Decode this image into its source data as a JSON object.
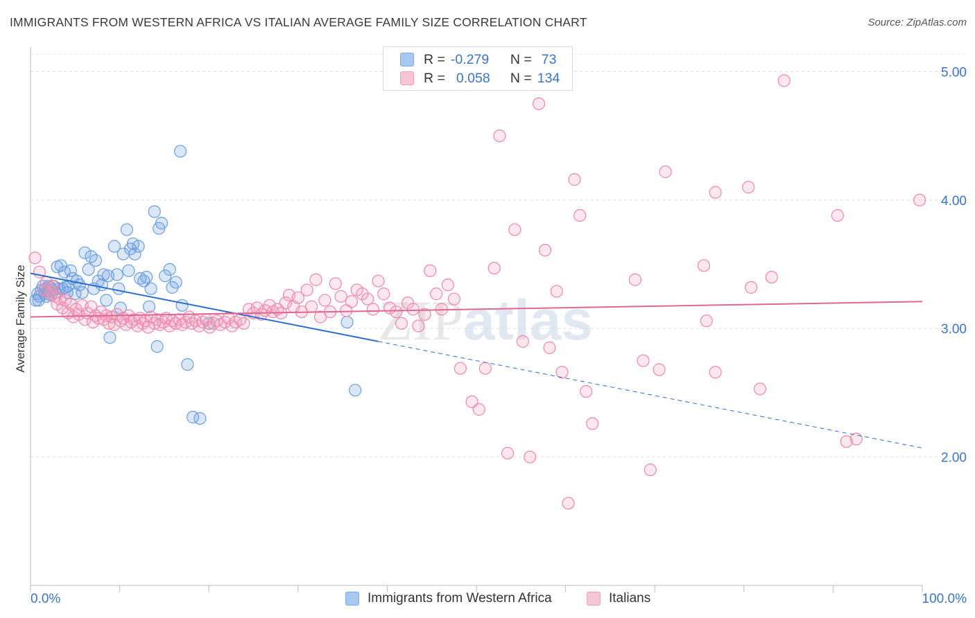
{
  "title": "IMMIGRANTS FROM WESTERN AFRICA VS ITALIAN AVERAGE FAMILY SIZE CORRELATION CHART",
  "source": "Source: ZipAtlas.com",
  "watermark": "ZIPatlas",
  "legend_top": [
    {
      "r_label": "R =",
      "r_value": "-0.279",
      "n_label": "N =",
      "n_value": "73",
      "color": "#a9c8f0"
    },
    {
      "r_label": "R =",
      "r_value": "0.058",
      "n_label": "N =",
      "n_value": "134",
      "color": "#f7b8cc"
    }
  ],
  "legend_bottom": [
    {
      "label": "Immigrants from Western Africa",
      "color": "#a9c8f0"
    },
    {
      "label": "Italians",
      "color": "#f7b8cc"
    }
  ],
  "chart_data": {
    "type": "scatter",
    "xlabel": "",
    "ylabel": "Average Family Size",
    "xlim": [
      0,
      100
    ],
    "ylim": [
      1.0,
      5.18
    ],
    "x_tick_labels": [
      "0.0%",
      "100.0%"
    ],
    "y_ticks": [
      2.0,
      3.0,
      4.0,
      5.0
    ],
    "y_tick_labels": [
      "2.00",
      "3.00",
      "4.00",
      "5.00"
    ],
    "grid": true,
    "legend_position": "top-center",
    "series": [
      {
        "name": "Immigrants from Western Africa",
        "color": "#6a9fe0",
        "fill": "rgba(110,160,225,0.25)",
        "trend_color": "#2a6dcc",
        "trend": {
          "x0": 0,
          "y0": 3.43,
          "x_solid_end": 39,
          "x1": 100,
          "y1": 2.07
        },
        "points": [
          [
            0.6,
            3.22
          ],
          [
            0.8,
            3.27
          ],
          [
            0.9,
            3.22
          ],
          [
            1.0,
            3.25
          ],
          [
            1.2,
            3.3
          ],
          [
            1.4,
            3.33
          ],
          [
            1.6,
            3.27
          ],
          [
            1.7,
            3.31
          ],
          [
            1.8,
            3.25
          ],
          [
            2.0,
            3.33
          ],
          [
            2.1,
            3.29
          ],
          [
            2.2,
            3.32
          ],
          [
            2.3,
            3.26
          ],
          [
            2.4,
            3.3
          ],
          [
            2.6,
            3.33
          ],
          [
            2.8,
            3.28
          ],
          [
            3.0,
            3.48
          ],
          [
            3.2,
            3.31
          ],
          [
            3.4,
            3.49
          ],
          [
            3.6,
            3.31
          ],
          [
            3.8,
            3.44
          ],
          [
            3.9,
            3.32
          ],
          [
            4.1,
            3.28
          ],
          [
            4.2,
            3.33
          ],
          [
            4.5,
            3.45
          ],
          [
            4.7,
            3.39
          ],
          [
            5.0,
            3.27
          ],
          [
            5.2,
            3.37
          ],
          [
            5.5,
            3.34
          ],
          [
            5.8,
            3.28
          ],
          [
            6.1,
            3.59
          ],
          [
            6.5,
            3.46
          ],
          [
            6.8,
            3.56
          ],
          [
            7.1,
            3.31
          ],
          [
            7.3,
            3.53
          ],
          [
            7.6,
            3.37
          ],
          [
            8.0,
            3.34
          ],
          [
            8.2,
            3.42
          ],
          [
            8.5,
            3.22
          ],
          [
            8.7,
            3.41
          ],
          [
            8.9,
            2.93
          ],
          [
            9.1,
            3.09
          ],
          [
            9.4,
            3.64
          ],
          [
            9.7,
            3.42
          ],
          [
            9.9,
            3.31
          ],
          [
            10.1,
            3.16
          ],
          [
            10.4,
            3.58
          ],
          [
            10.8,
            3.77
          ],
          [
            11.0,
            3.45
          ],
          [
            11.2,
            3.62
          ],
          [
            11.5,
            3.66
          ],
          [
            11.7,
            3.58
          ],
          [
            12.1,
            3.64
          ],
          [
            12.3,
            3.39
          ],
          [
            12.7,
            3.37
          ],
          [
            13.0,
            3.4
          ],
          [
            13.3,
            3.17
          ],
          [
            13.5,
            3.31
          ],
          [
            13.9,
            3.91
          ],
          [
            14.2,
            2.86
          ],
          [
            14.4,
            3.78
          ],
          [
            14.7,
            3.82
          ],
          [
            15.1,
            3.41
          ],
          [
            15.6,
            3.46
          ],
          [
            15.9,
            3.32
          ],
          [
            16.3,
            3.36
          ],
          [
            16.8,
            4.38
          ],
          [
            17.0,
            3.18
          ],
          [
            17.6,
            2.72
          ],
          [
            18.2,
            2.31
          ],
          [
            19.0,
            2.3
          ],
          [
            20.0,
            3.04
          ],
          [
            35.5,
            3.05
          ],
          [
            36.4,
            2.52
          ]
        ]
      },
      {
        "name": "Italians",
        "color": "#ee88aa",
        "fill": "rgba(245,160,190,0.25)",
        "trend_color": "#e06690",
        "trend": {
          "x0": 0,
          "y0": 3.09,
          "x1": 100,
          "y1": 3.21
        },
        "points": [
          [
            0.5,
            3.55
          ],
          [
            1.0,
            3.44
          ],
          [
            1.5,
            3.3
          ],
          [
            1.8,
            3.36
          ],
          [
            2.1,
            3.27
          ],
          [
            2.3,
            3.29
          ],
          [
            2.5,
            3.33
          ],
          [
            2.8,
            3.25
          ],
          [
            3.0,
            3.19
          ],
          [
            3.3,
            3.23
          ],
          [
            3.6,
            3.16
          ],
          [
            3.9,
            3.22
          ],
          [
            4.2,
            3.12
          ],
          [
            4.5,
            3.19
          ],
          [
            4.8,
            3.09
          ],
          [
            5.1,
            3.15
          ],
          [
            5.4,
            3.11
          ],
          [
            5.8,
            3.18
          ],
          [
            6.1,
            3.07
          ],
          [
            6.4,
            3.12
          ],
          [
            6.8,
            3.17
          ],
          [
            7.0,
            3.05
          ],
          [
            7.3,
            3.1
          ],
          [
            7.6,
            3.08
          ],
          [
            7.9,
            3.13
          ],
          [
            8.2,
            3.07
          ],
          [
            8.5,
            3.1
          ],
          [
            8.8,
            3.04
          ],
          [
            9.1,
            3.09
          ],
          [
            9.4,
            3.03
          ],
          [
            9.7,
            3.11
          ],
          [
            10.1,
            3.06
          ],
          [
            10.4,
            3.08
          ],
          [
            10.7,
            3.03
          ],
          [
            11.0,
            3.1
          ],
          [
            11.3,
            3.05
          ],
          [
            11.6,
            3.07
          ],
          [
            12.0,
            3.02
          ],
          [
            12.3,
            3.08
          ],
          [
            12.6,
            3.04
          ],
          [
            12.9,
            3.06
          ],
          [
            13.2,
            3.01
          ],
          [
            13.5,
            3.09
          ],
          [
            13.9,
            3.04
          ],
          [
            14.2,
            3.07
          ],
          [
            14.5,
            3.03
          ],
          [
            14.9,
            3.05
          ],
          [
            15.2,
            3.08
          ],
          [
            15.6,
            3.02
          ],
          [
            15.9,
            3.06
          ],
          [
            16.3,
            3.04
          ],
          [
            16.7,
            3.07
          ],
          [
            17.0,
            3.03
          ],
          [
            17.4,
            3.05
          ],
          [
            17.8,
            3.09
          ],
          [
            18.1,
            3.04
          ],
          [
            18.5,
            3.06
          ],
          [
            18.9,
            3.02
          ],
          [
            19.3,
            3.05
          ],
          [
            19.7,
            3.07
          ],
          [
            20.1,
            3.01
          ],
          [
            20.5,
            3.04
          ],
          [
            20.9,
            3.06
          ],
          [
            21.3,
            3.03
          ],
          [
            21.8,
            3.05
          ],
          [
            22.2,
            3.08
          ],
          [
            22.6,
            3.02
          ],
          [
            23.0,
            3.05
          ],
          [
            23.5,
            3.07
          ],
          [
            23.9,
            3.04
          ],
          [
            24.5,
            3.15
          ],
          [
            25.0,
            3.12
          ],
          [
            25.4,
            3.16
          ],
          [
            25.9,
            3.11
          ],
          [
            26.3,
            3.14
          ],
          [
            26.8,
            3.18
          ],
          [
            27.2,
            3.13
          ],
          [
            27.7,
            3.15
          ],
          [
            28.1,
            3.12
          ],
          [
            28.6,
            3.2
          ],
          [
            29.0,
            3.26
          ],
          [
            29.5,
            3.17
          ],
          [
            30.0,
            3.24
          ],
          [
            30.4,
            3.13
          ],
          [
            31.0,
            3.3
          ],
          [
            31.5,
            3.17
          ],
          [
            32.0,
            3.38
          ],
          [
            32.5,
            3.09
          ],
          [
            33.0,
            3.22
          ],
          [
            33.6,
            3.13
          ],
          [
            34.2,
            3.35
          ],
          [
            34.8,
            3.25
          ],
          [
            35.4,
            3.14
          ],
          [
            36.0,
            3.21
          ],
          [
            36.6,
            3.3
          ],
          [
            37.2,
            3.27
          ],
          [
            37.8,
            3.23
          ],
          [
            38.4,
            3.15
          ],
          [
            39.0,
            3.37
          ],
          [
            39.6,
            3.27
          ],
          [
            40.3,
            3.16
          ],
          [
            41.0,
            3.13
          ],
          [
            41.6,
            3.04
          ],
          [
            42.3,
            3.2
          ],
          [
            42.9,
            3.15
          ],
          [
            43.5,
            3.02
          ],
          [
            44.2,
            3.11
          ],
          [
            44.8,
            3.45
          ],
          [
            45.5,
            3.27
          ],
          [
            46.1,
            3.15
          ],
          [
            46.8,
            3.34
          ],
          [
            47.5,
            3.23
          ],
          [
            48.2,
            2.69
          ],
          [
            49.5,
            2.43
          ],
          [
            50.3,
            2.37
          ],
          [
            51.0,
            2.69
          ],
          [
            52.0,
            3.47
          ],
          [
            52.6,
            4.5
          ],
          [
            53.5,
            2.03
          ],
          [
            54.3,
            3.77
          ],
          [
            55.2,
            2.9
          ],
          [
            56.0,
            2.0
          ],
          [
            57.0,
            4.75
          ],
          [
            57.7,
            3.61
          ],
          [
            58.2,
            2.85
          ],
          [
            59.0,
            3.29
          ],
          [
            59.6,
            2.66
          ],
          [
            60.3,
            1.64
          ],
          [
            61.0,
            4.16
          ],
          [
            61.6,
            3.88
          ],
          [
            62.3,
            2.51
          ],
          [
            63.0,
            2.26
          ],
          [
            67.8,
            3.38
          ],
          [
            68.7,
            2.75
          ],
          [
            69.5,
            1.9
          ],
          [
            70.5,
            2.68
          ],
          [
            71.2,
            4.22
          ],
          [
            75.5,
            3.49
          ],
          [
            75.8,
            3.06
          ],
          [
            76.8,
            4.06
          ],
          [
            76.8,
            2.66
          ],
          [
            80.5,
            4.1
          ],
          [
            80.8,
            3.32
          ],
          [
            81.8,
            2.53
          ],
          [
            83.1,
            3.4
          ],
          [
            84.5,
            4.93
          ],
          [
            90.5,
            3.88
          ],
          [
            91.5,
            2.12
          ],
          [
            92.6,
            2.14
          ],
          [
            99.7,
            4.0
          ]
        ]
      }
    ]
  }
}
